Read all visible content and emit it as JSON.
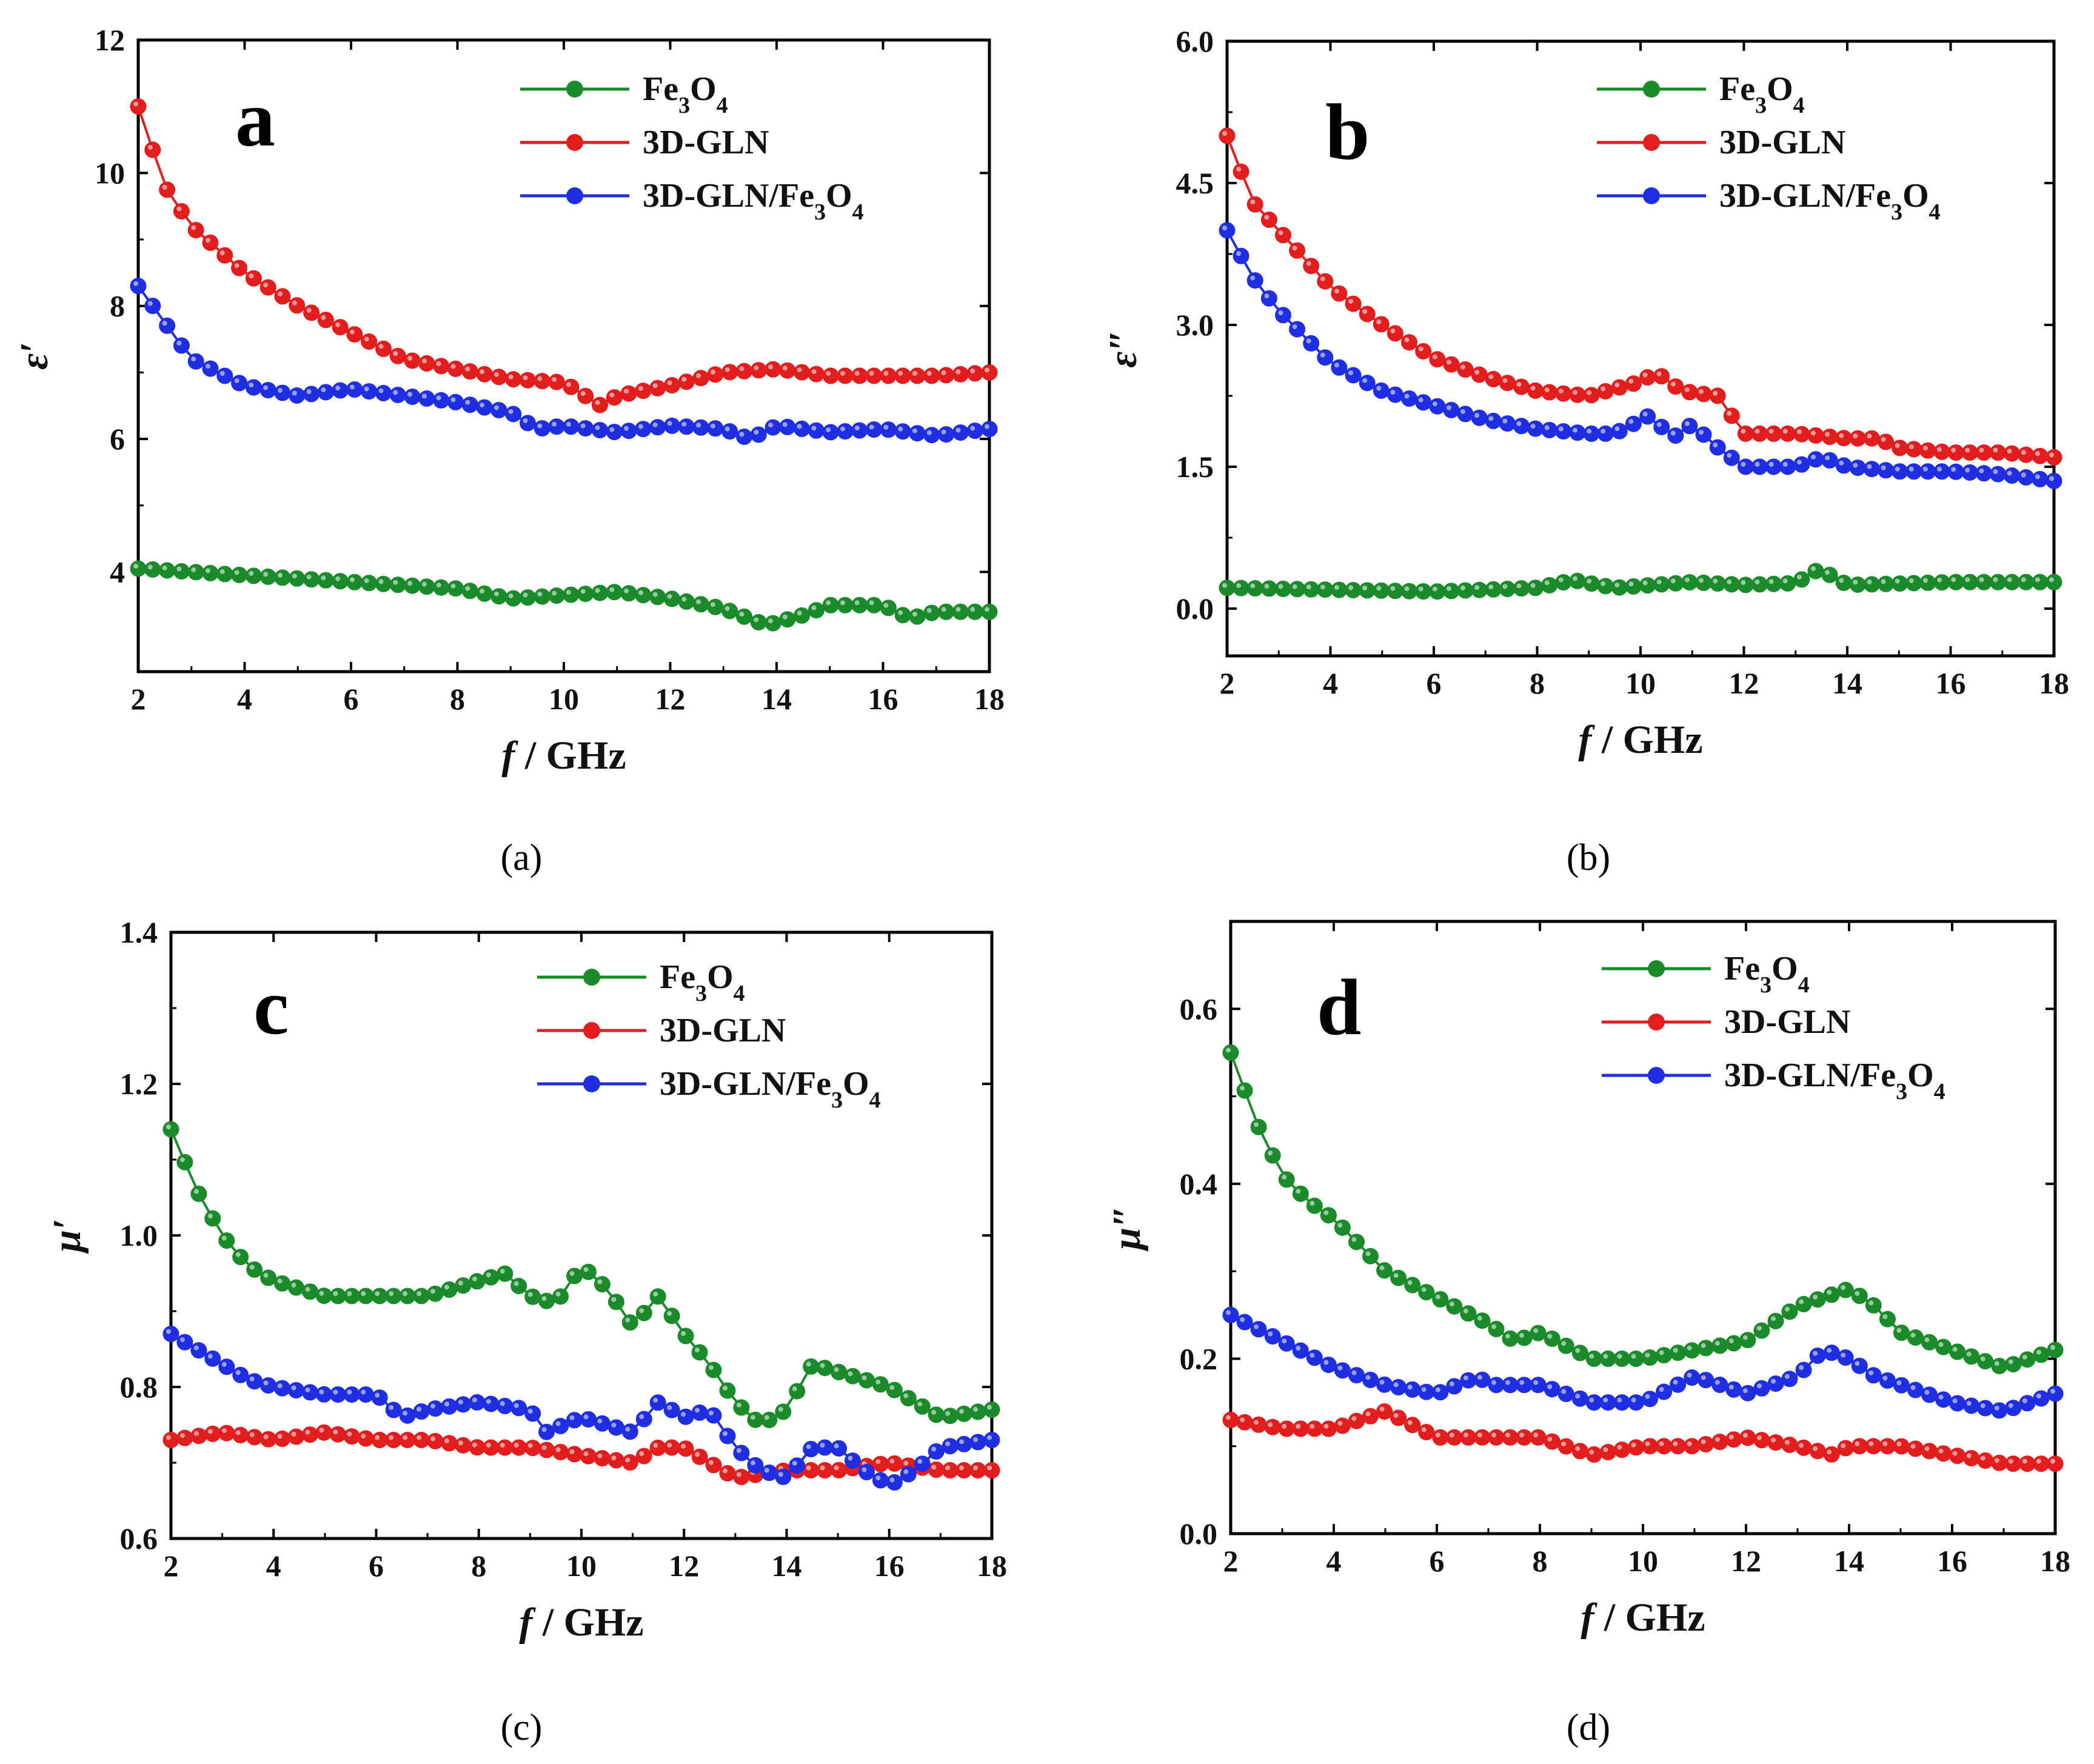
{
  "chart_data": [
    {
      "type": "line",
      "panel": "a",
      "title": "",
      "xlabel": "f / GHz",
      "ylabel": "ε′",
      "xlim": [
        2,
        18
      ],
      "ylim": [
        2.5,
        12
      ],
      "xticks": [
        2,
        4,
        6,
        8,
        10,
        12,
        14,
        16,
        18
      ],
      "yticks": [
        4,
        6,
        8,
        10,
        12
      ],
      "caption": "(a)",
      "legend_position": "top-right",
      "series": [
        {
          "name": "Fe3O4",
          "color": "#1a8a2a",
          "x": [
            2,
            4,
            6,
            8,
            9,
            10,
            11,
            12,
            13,
            13.8,
            14.5,
            15,
            16,
            16.5,
            17,
            18
          ],
          "y": [
            4.05,
            3.95,
            3.85,
            3.75,
            3.6,
            3.65,
            3.7,
            3.6,
            3.45,
            3.2,
            3.35,
            3.5,
            3.5,
            3.3,
            3.4,
            3.4
          ]
        },
        {
          "name": "3D-GLN",
          "color": "#e21d1d",
          "x": [
            2,
            2.5,
            3,
            4,
            5,
            6,
            7,
            8,
            9,
            10,
            10.7,
            11,
            12,
            13,
            14,
            15,
            16,
            17,
            18
          ],
          "y": [
            11.0,
            9.8,
            9.2,
            8.5,
            8.0,
            7.6,
            7.2,
            7.05,
            6.9,
            6.85,
            6.5,
            6.65,
            6.8,
            7.0,
            7.05,
            6.95,
            6.95,
            6.95,
            7.0
          ]
        },
        {
          "name": "3D-GLN/Fe3O4",
          "color": "#1f2ee0",
          "x": [
            2,
            3,
            4,
            5,
            6,
            7,
            8,
            9,
            9.5,
            10,
            11,
            12,
            13,
            13.5,
            14,
            15,
            16,
            17,
            18
          ],
          "y": [
            8.3,
            7.2,
            6.8,
            6.65,
            6.75,
            6.65,
            6.55,
            6.4,
            6.15,
            6.2,
            6.1,
            6.2,
            6.15,
            6.0,
            6.2,
            6.1,
            6.15,
            6.05,
            6.15
          ]
        }
      ]
    },
    {
      "type": "line",
      "panel": "b",
      "title": "",
      "xlabel": "f / GHz",
      "ylabel": "ε″",
      "xlim": [
        2,
        18
      ],
      "ylim": [
        -0.5,
        6.0
      ],
      "xticks": [
        2,
        4,
        6,
        8,
        10,
        12,
        14,
        16,
        18
      ],
      "yticks": [
        0.0,
        1.5,
        3.0,
        4.5,
        6.0
      ],
      "caption": "(b)",
      "legend_position": "top-right",
      "series": [
        {
          "name": "Fe3O4",
          "color": "#1a8a2a",
          "x": [
            2,
            4,
            6,
            8,
            8.7,
            9.5,
            11,
            12,
            13,
            13.4,
            13.7,
            14,
            16,
            18
          ],
          "y": [
            0.22,
            0.2,
            0.18,
            0.22,
            0.3,
            0.22,
            0.28,
            0.25,
            0.27,
            0.4,
            0.35,
            0.25,
            0.28,
            0.28
          ]
        },
        {
          "name": "3D-GLN",
          "color": "#e21d1d",
          "x": [
            2,
            2.5,
            3,
            4,
            5,
            6,
            7,
            8,
            9,
            10,
            10.3,
            10.8,
            11.5,
            12,
            13,
            14,
            14.6,
            15,
            16,
            17,
            18
          ],
          "y": [
            5.0,
            4.3,
            4.0,
            3.4,
            3.0,
            2.65,
            2.45,
            2.3,
            2.25,
            2.4,
            2.5,
            2.3,
            2.25,
            1.85,
            1.85,
            1.8,
            1.8,
            1.7,
            1.65,
            1.65,
            1.6
          ]
        },
        {
          "name": "3D-GLN/Fe3O4",
          "color": "#1f2ee0",
          "x": [
            2,
            2.5,
            3,
            4,
            5,
            6,
            7,
            8,
            9,
            9.5,
            10.2,
            10.6,
            11,
            11.5,
            12,
            13,
            13.5,
            14,
            15,
            16,
            17,
            18
          ],
          "y": [
            4.0,
            3.5,
            3.15,
            2.6,
            2.3,
            2.15,
            2.0,
            1.9,
            1.85,
            1.85,
            2.05,
            1.8,
            1.95,
            1.7,
            1.5,
            1.5,
            1.6,
            1.5,
            1.45,
            1.45,
            1.42,
            1.35
          ]
        }
      ]
    },
    {
      "type": "line",
      "panel": "c",
      "title": "",
      "xlabel": "f / GHz",
      "ylabel": "μ′",
      "xlim": [
        2,
        18
      ],
      "ylim": [
        0.6,
        1.4
      ],
      "xticks": [
        2,
        4,
        6,
        8,
        10,
        12,
        14,
        16,
        18
      ],
      "yticks": [
        0.6,
        0.8,
        1.0,
        1.2,
        1.4
      ],
      "caption": "(c)",
      "legend_position": "top-right",
      "series": [
        {
          "name": "Fe3O4",
          "color": "#1a8a2a",
          "x": [
            2,
            2.5,
            3,
            3.5,
            4,
            5,
            6,
            7,
            8,
            8.5,
            9,
            9.5,
            10,
            10.5,
            11,
            11.5,
            12,
            12.5,
            13,
            13.5,
            14,
            14.5,
            15,
            16,
            17,
            18
          ],
          "y": [
            1.14,
            1.06,
            1.0,
            0.96,
            0.94,
            0.92,
            0.92,
            0.92,
            0.94,
            0.95,
            0.92,
            0.91,
            0.96,
            0.93,
            0.88,
            0.92,
            0.87,
            0.83,
            0.78,
            0.75,
            0.77,
            0.83,
            0.82,
            0.8,
            0.76,
            0.77
          ]
        },
        {
          "name": "3D-GLN",
          "color": "#e21d1d",
          "x": [
            2,
            3,
            4,
            5,
            6,
            7,
            8,
            9,
            10,
            11,
            11.5,
            12,
            12.5,
            13,
            14,
            15,
            16,
            17,
            18
          ],
          "y": [
            0.73,
            0.74,
            0.73,
            0.74,
            0.73,
            0.73,
            0.72,
            0.72,
            0.71,
            0.7,
            0.72,
            0.72,
            0.7,
            0.68,
            0.69,
            0.69,
            0.7,
            0.69,
            0.69
          ]
        },
        {
          "name": "3D-GLN/Fe3O4",
          "color": "#1f2ee0",
          "x": [
            2,
            2.5,
            3,
            3.5,
            4,
            5,
            6,
            6.5,
            7,
            8,
            9,
            9.3,
            10,
            10.5,
            11,
            11.5,
            12,
            12.5,
            13,
            13.5,
            14,
            14.5,
            15,
            15.5,
            16,
            16.5,
            17,
            18
          ],
          "y": [
            0.87,
            0.85,
            0.83,
            0.81,
            0.8,
            0.79,
            0.79,
            0.76,
            0.77,
            0.78,
            0.77,
            0.74,
            0.76,
            0.75,
            0.74,
            0.78,
            0.76,
            0.77,
            0.72,
            0.69,
            0.68,
            0.72,
            0.72,
            0.69,
            0.67,
            0.69,
            0.72,
            0.73
          ]
        }
      ]
    },
    {
      "type": "line",
      "panel": "d",
      "title": "",
      "xlabel": "f / GHz",
      "ylabel": "μ″",
      "xlim": [
        2,
        18
      ],
      "ylim": [
        0.0,
        0.7
      ],
      "xticks": [
        2,
        4,
        6,
        8,
        10,
        12,
        14,
        16,
        18
      ],
      "yticks": [
        0.0,
        0.2,
        0.4,
        0.6
      ],
      "caption": "(d)",
      "legend_position": "top-right",
      "series": [
        {
          "name": "Fe3O4",
          "color": "#1a8a2a",
          "x": [
            2,
            2.5,
            3,
            3.5,
            4,
            5,
            6,
            7,
            7.5,
            8,
            9,
            10,
            11,
            12,
            13,
            13.5,
            14,
            14.5,
            15,
            16,
            17,
            18
          ],
          "y": [
            0.55,
            0.47,
            0.41,
            0.38,
            0.36,
            0.3,
            0.27,
            0.24,
            0.22,
            0.23,
            0.2,
            0.2,
            0.21,
            0.22,
            0.26,
            0.27,
            0.28,
            0.26,
            0.23,
            0.21,
            0.19,
            0.21
          ]
        },
        {
          "name": "3D-GLN",
          "color": "#e21d1d",
          "x": [
            2,
            3,
            4,
            5,
            6,
            7,
            8,
            9,
            10,
            11,
            12,
            13,
            13.7,
            14,
            15,
            16,
            17,
            18
          ],
          "y": [
            0.13,
            0.12,
            0.12,
            0.14,
            0.11,
            0.11,
            0.11,
            0.09,
            0.1,
            0.1,
            0.11,
            0.1,
            0.09,
            0.1,
            0.1,
            0.09,
            0.08,
            0.08
          ]
        },
        {
          "name": "3D-GLN/Fe3O4",
          "color": "#1f2ee0",
          "x": [
            2,
            3,
            4,
            5,
            6,
            6.8,
            7,
            8,
            9,
            10,
            11,
            12,
            13,
            13.5,
            14,
            14.5,
            15,
            16,
            17,
            18
          ],
          "y": [
            0.25,
            0.22,
            0.19,
            0.17,
            0.16,
            0.18,
            0.17,
            0.17,
            0.15,
            0.15,
            0.18,
            0.16,
            0.18,
            0.21,
            0.2,
            0.18,
            0.17,
            0.15,
            0.14,
            0.16
          ]
        }
      ]
    }
  ]
}
